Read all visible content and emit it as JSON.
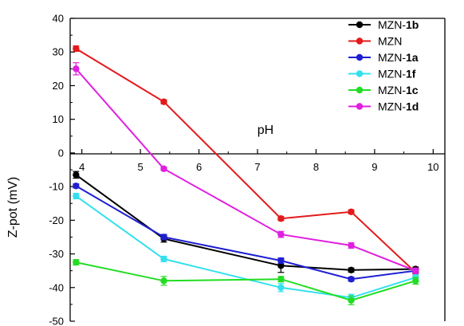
{
  "chart_data": {
    "type": "line",
    "xlabel": "pH",
    "ylabel": "Z-pot (mV)",
    "xlim": [
      3.8,
      10.2
    ],
    "ylim": [
      -50,
      40
    ],
    "x_ticks": [
      "4",
      "5",
      "6",
      "7",
      "8",
      "9",
      "10"
    ],
    "y_ticks": [
      "40",
      "30",
      "20",
      "10",
      "0",
      "-10",
      "-20",
      "-30",
      "-40",
      "-50"
    ],
    "x": [
      3.9,
      5.4,
      7.4,
      8.6,
      9.7
    ],
    "legend_position": "top-right",
    "series": [
      {
        "name": "MZN-1b",
        "name_prefix": "MZN-",
        "name_bold": "1b",
        "color": "#000000",
        "values": [
          -6.5,
          -25.5,
          -33.5,
          -34.8,
          -34.5
        ],
        "errors": [
          1.0,
          1.0,
          2.0,
          0.6,
          0.6
        ]
      },
      {
        "name": "MZN",
        "name_prefix": "MZN",
        "name_bold": "",
        "color": "#e31a1c",
        "values": [
          31.0,
          15.2,
          -19.5,
          -17.5,
          -35.5
        ],
        "errors": [
          0.8,
          0.6,
          0.6,
          0.6,
          0.8
        ]
      },
      {
        "name": "MZN-1a",
        "name_prefix": "MZN-",
        "name_bold": "1a",
        "color": "#1f1fd1",
        "values": [
          -9.8,
          -25.0,
          -32.0,
          -37.5,
          -35.0
        ],
        "errors": [
          0.6,
          0.8,
          0.8,
          0.6,
          0.6
        ]
      },
      {
        "name": "MZN-1f",
        "name_prefix": "MZN-",
        "name_bold": "1f",
        "color": "#33e0ee",
        "values": [
          -12.8,
          -31.5,
          -40.0,
          -43.0,
          -37.0
        ],
        "errors": [
          0.8,
          0.8,
          1.2,
          1.0,
          0.8
        ]
      },
      {
        "name": "MZN-1c",
        "name_prefix": "MZN-",
        "name_bold": "1c",
        "color": "#22dd22",
        "values": [
          -32.5,
          -38.0,
          -37.5,
          -43.8,
          -38.0
        ],
        "errors": [
          0.8,
          1.3,
          0.8,
          1.3,
          1.0
        ]
      },
      {
        "name": "MZN-1d",
        "name_prefix": "MZN-",
        "name_bold": "1d",
        "color": "#e020e0",
        "values": [
          25.0,
          -4.7,
          -24.2,
          -27.5,
          -35.0
        ],
        "errors": [
          1.8,
          0.5,
          0.9,
          0.8,
          0.8
        ]
      }
    ]
  }
}
